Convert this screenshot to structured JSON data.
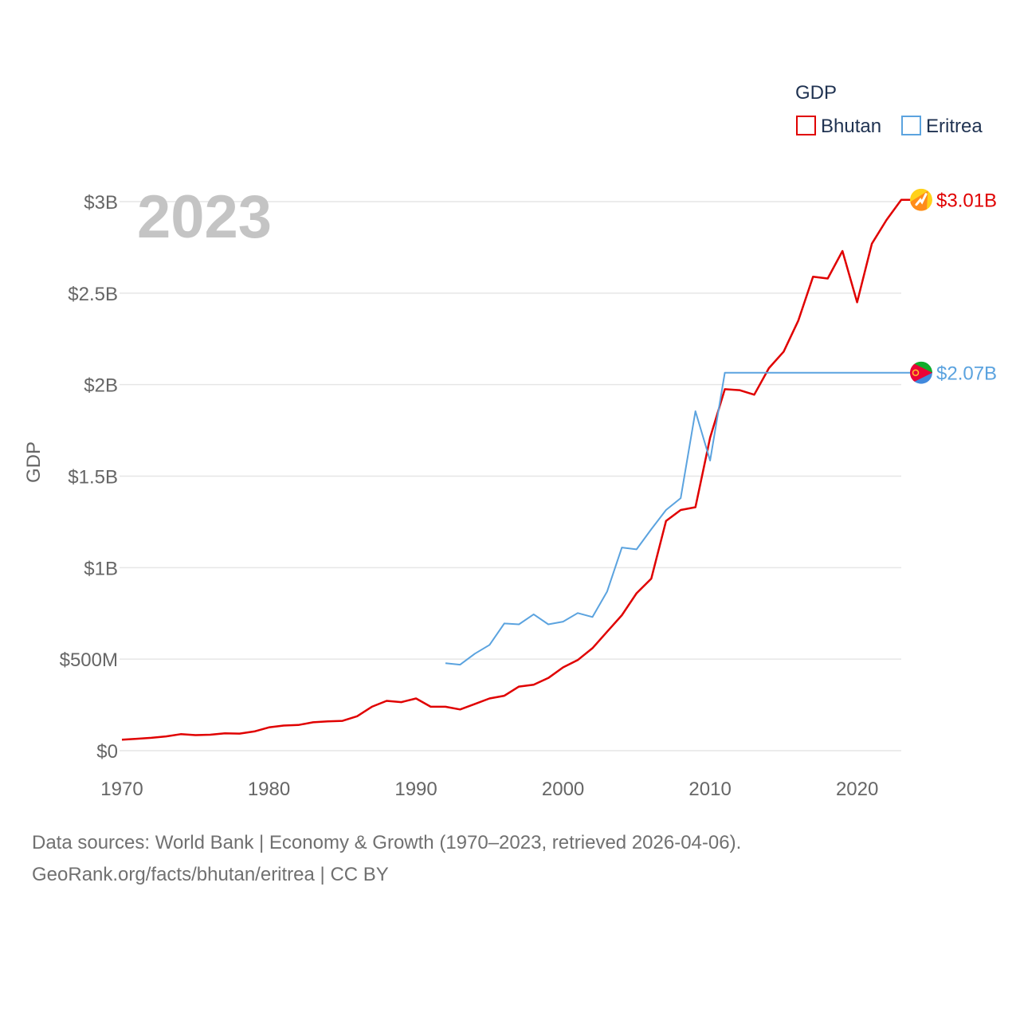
{
  "chart_data": {
    "type": "line",
    "title": "GDP",
    "xlabel": "",
    "ylabel": "GDP",
    "year_label": "2023",
    "xlim": [
      1970,
      2023
    ],
    "ylim": [
      0,
      3000000000
    ],
    "x_ticks": [
      {
        "value": 1970,
        "label": "1970"
      },
      {
        "value": 1980,
        "label": "1980"
      },
      {
        "value": 1990,
        "label": "1990"
      },
      {
        "value": 2000,
        "label": "2000"
      },
      {
        "value": 2010,
        "label": "2010"
      },
      {
        "value": 2020,
        "label": "2020"
      }
    ],
    "y_ticks": [
      {
        "value": 0,
        "label": "$0"
      },
      {
        "value": 500000000,
        "label": "$500M"
      },
      {
        "value": 1000000000,
        "label": "$1B"
      },
      {
        "value": 1500000000,
        "label": "$1.5B"
      },
      {
        "value": 2000000000,
        "label": "$2B"
      },
      {
        "value": 2500000000,
        "label": "$2.5B"
      },
      {
        "value": 3000000000,
        "label": "$3B"
      }
    ],
    "legend": {
      "title": "GDP",
      "position": "top-right"
    },
    "series": [
      {
        "name": "Bhutan",
        "color": "#e00000",
        "flag_icon": "bhutan-flag-icon",
        "end_label": "$3.01B",
        "x": [
          1970,
          1971,
          1972,
          1973,
          1974,
          1975,
          1976,
          1977,
          1978,
          1979,
          1980,
          1981,
          1982,
          1983,
          1984,
          1985,
          1986,
          1987,
          1988,
          1989,
          1990,
          1991,
          1992,
          1993,
          1994,
          1995,
          1996,
          1997,
          1998,
          1999,
          2000,
          2001,
          2002,
          2003,
          2004,
          2005,
          2006,
          2007,
          2008,
          2009,
          2010,
          2011,
          2012,
          2013,
          2014,
          2015,
          2016,
          2017,
          2018,
          2019,
          2020,
          2021,
          2022,
          2023
        ],
        "values": [
          60000000,
          65000000,
          70000000,
          78000000,
          90000000,
          85000000,
          87000000,
          95000000,
          93000000,
          105000000,
          127000000,
          137000000,
          140000000,
          155000000,
          160000000,
          163000000,
          188000000,
          240000000,
          272000000,
          265000000,
          285000000,
          240000000,
          240000000,
          225000000,
          255000000,
          285000000,
          300000000,
          350000000,
          360000000,
          397000000,
          455000000,
          495000000,
          560000000,
          650000000,
          740000000,
          860000000,
          940000000,
          1255000000,
          1315000000,
          1330000000,
          1710000000,
          1975000000,
          1970000000,
          1945000000,
          2090000000,
          2180000000,
          2350000000,
          2590000000,
          2580000000,
          2730000000,
          2450000000,
          2770000000,
          2900000000,
          3010000000
        ]
      },
      {
        "name": "Eritrea",
        "color": "#5ba3df",
        "flag_icon": "eritrea-flag-icon",
        "end_label": "$2.07B",
        "x": [
          1992,
          1993,
          1994,
          1995,
          1996,
          1997,
          1998,
          1999,
          2000,
          2001,
          2002,
          2003,
          2004,
          2005,
          2006,
          2007,
          2008,
          2009,
          2010,
          2011,
          2012,
          2013,
          2014,
          2015,
          2016,
          2017,
          2018,
          2019,
          2020,
          2021,
          2022,
          2023
        ],
        "values": [
          478000000,
          470000000,
          530000000,
          578000000,
          695000000,
          690000000,
          745000000,
          690000000,
          705000000,
          752000000,
          730000000,
          870000000,
          1110000000,
          1100000000,
          1210000000,
          1315000000,
          1380000000,
          1855000000,
          1585000000,
          2065000000,
          2065000000,
          2065000000,
          2065000000,
          2065000000,
          2065000000,
          2065000000,
          2065000000,
          2065000000,
          2065000000,
          2065000000,
          2065000000,
          2065000000
        ]
      }
    ]
  },
  "footer": {
    "line1": "Data sources: World Bank | Economy & Growth (1970–2023, retrieved 2026-04-06).",
    "line2": "GeoRank.org/facts/bhutan/eritrea | CC BY"
  }
}
